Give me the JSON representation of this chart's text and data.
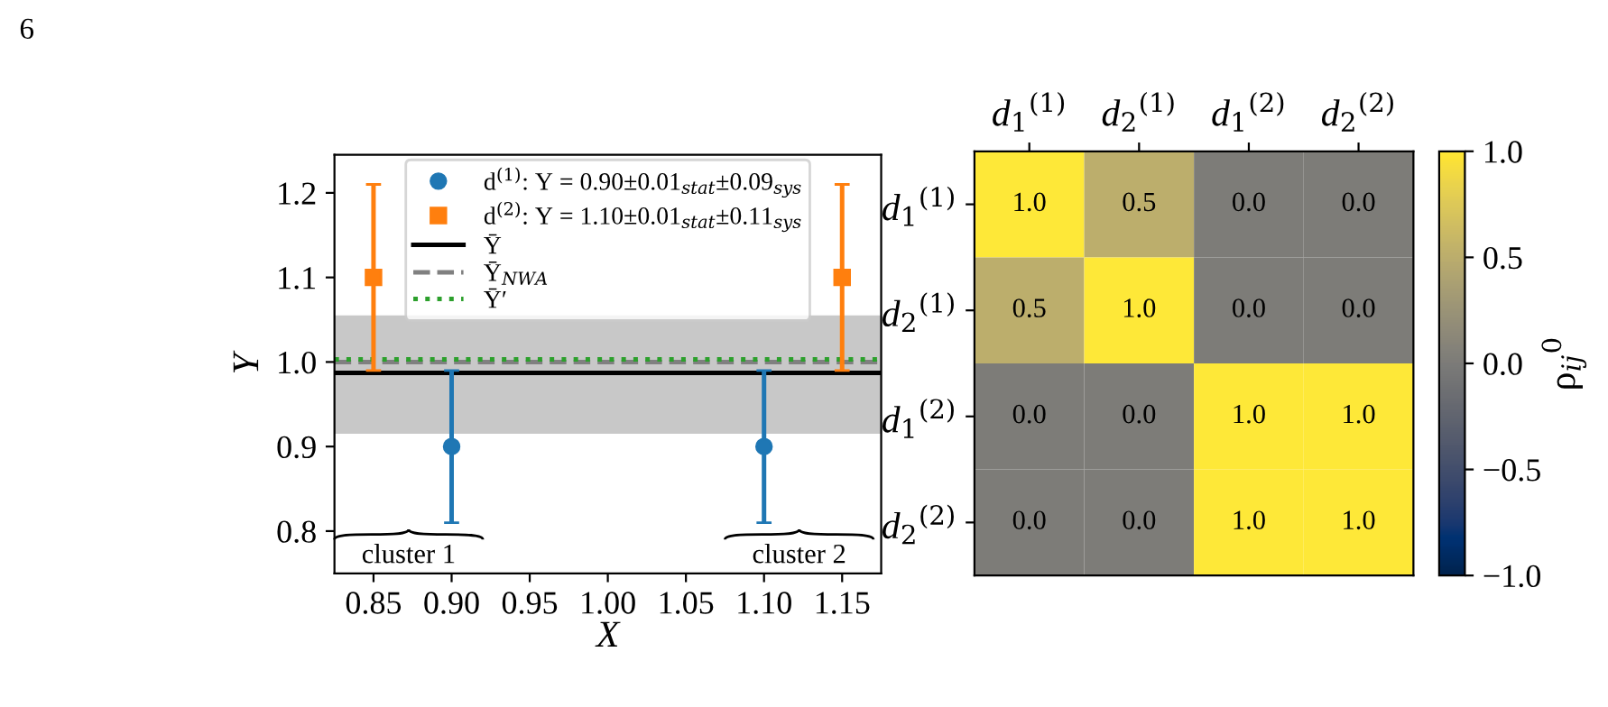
{
  "chart_data": [
    {
      "type": "scatter",
      "xlabel": "X",
      "ylabel": "Y",
      "xlim": [
        0.825,
        1.175
      ],
      "ylim": [
        0.75,
        1.245
      ],
      "xticks": [
        0.85,
        {
          "value": 0.9,
          "label": "0.90"
        },
        0.95,
        {
          "value": 1.0,
          "label": "1.00"
        },
        1.05,
        {
          "value": 1.1,
          "label": "1.10"
        },
        1.15
      ],
      "yticks": [
        0.8,
        0.9,
        {
          "value": 1.0,
          "label": "1.0"
        },
        1.1,
        1.2
      ],
      "legend": "top",
      "grid": false,
      "series": [
        {
          "name": "d$^{(1)}$: Y = 0.90±0.01$_{stat}$±0.09$_{sys}$",
          "color": "#1f77b4",
          "marker": "circle",
          "x": [
            0.9,
            1.1
          ],
          "values": [
            0.9,
            0.9
          ],
          "errors": [
            0.09,
            0.09
          ]
        },
        {
          "name": "d$^{(2)}$: Y = 1.10±0.01$_{stat}$±0.11$_{sys}$",
          "color": "#ff7f0e",
          "marker": "square",
          "x": [
            0.85,
            1.15
          ],
          "values": [
            1.1,
            1.1
          ],
          "errors": [
            0.11,
            0.11
          ]
        }
      ],
      "ref_lines": [
        {
          "axis": "y",
          "value": 0.987,
          "label": "Ȳ",
          "color": "#000000",
          "line_style": "solid"
        },
        {
          "axis": "y",
          "value": 1.0,
          "label": "Ȳ$_{NWA}$",
          "color": "#808080",
          "line_style": "dashed"
        },
        {
          "axis": "y",
          "value": 1.003,
          "label": "Ȳ′",
          "color": "#2ca02c",
          "line_style": "dotted"
        }
      ],
      "bands": [
        {
          "axis": "y",
          "from": 0.915,
          "to": 1.055,
          "color": "#c8c8c8"
        }
      ],
      "annotations": [
        "6",
        "cluster 1",
        "cluster 2"
      ]
    },
    {
      "type": "heatmap",
      "categories": [
        "d$_{1}$$^{(1)}$",
        "d$_{2}$$^{(1)}$",
        "d$_{1}$$^{(2)}$",
        "d$_{2}$$^{(2)}$"
      ],
      "y_categories": [
        "d$_{1}$$^{(1)}$",
        "d$_{2}$$^{(1)}$",
        "d$_{1}$$^{(2)}$",
        "d$_{2}$$^{(2)}$"
      ],
      "cells": [
        [
          1.0,
          0.5,
          0.0,
          0.0
        ],
        [
          0.5,
          1.0,
          0.0,
          0.0
        ],
        [
          0.0,
          0.0,
          1.0,
          1.0
        ],
        [
          0.0,
          0.0,
          1.0,
          1.0
        ]
      ],
      "cell_labels": [
        [
          "1.0",
          "0.5",
          "0.0",
          "0.0"
        ],
        [
          "0.5",
          "1.0",
          "0.0",
          "0.0"
        ],
        [
          "0.0",
          "0.0",
          "1.0",
          "1.0"
        ],
        [
          "0.0",
          "0.0",
          "1.0",
          "1.0"
        ]
      ],
      "clim": [
        -1.0,
        1.0
      ],
      "cticks": [
        {
          "value": -1.0,
          "label": "−1.0"
        },
        {
          "value": -0.5,
          "label": "−0.5"
        },
        {
          "value": 0.0,
          "label": "0.0"
        },
        {
          "value": 0.5,
          "label": "0.5"
        },
        {
          "value": 1.0,
          "label": "1.0"
        }
      ],
      "clabel": "ρ$_{ij}$$^{0}$"
    }
  ]
}
